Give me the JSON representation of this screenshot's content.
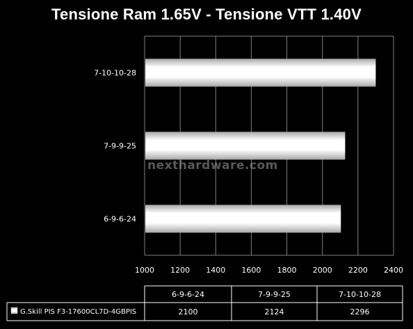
{
  "chart_data": {
    "type": "bar",
    "orientation": "horizontal",
    "title": "Tensione Ram 1.65V - Tensione VTT 1.40V",
    "categories": [
      "6-9-6-24",
      "7-9-9-25",
      "7-10-10-28"
    ],
    "series": [
      {
        "name": "G.Skill PIS F3-17600CL7D-4GBPIS",
        "values": [
          2100,
          2124,
          2296
        ]
      }
    ],
    "xlim": [
      1000,
      2400
    ],
    "xticks": [
      1000,
      1200,
      1400,
      1600,
      1800,
      2000,
      2200,
      2400
    ],
    "grid": true,
    "legend": "data-table-bottom",
    "table": {
      "headers": [
        "6-9-6-24",
        "7-9-9-25",
        "7-10-10-28"
      ],
      "row_label": "G.Skill PIS F3-17600CL7D-4GBPIS",
      "row_values": [
        "2100",
        "2124",
        "2296"
      ]
    }
  },
  "watermark": "nexthardware.com",
  "colors": {
    "background": "#000000",
    "plot_area": "#000000",
    "grid": "#808080",
    "bar_light": "#ffffff",
    "bar_dark": "#a8a8a8",
    "text": "#ffffff"
  }
}
